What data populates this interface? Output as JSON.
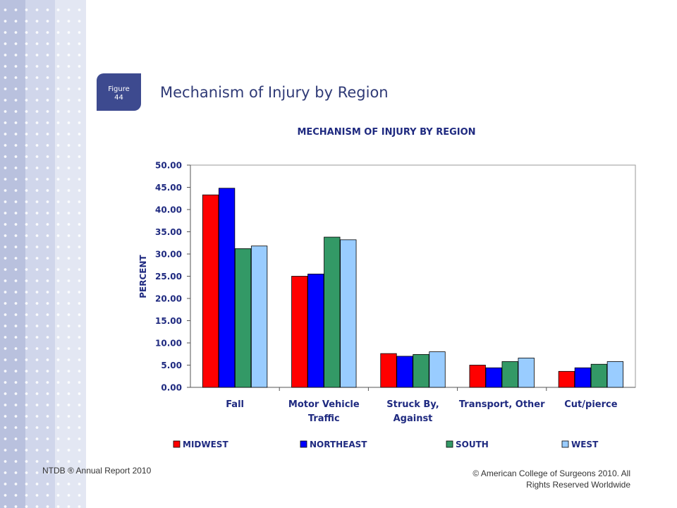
{
  "slide": {
    "figure_badge": [
      "Figure",
      "44"
    ],
    "title": "Mechanism of Injury by Region",
    "footer_left": "NTDB ® Annual Report 2010",
    "footer_right": [
      "© American College of Surgeons 2010.  All",
      "Rights Reserved Worldwide"
    ]
  },
  "colors": {
    "sidebar": "#eef0f8",
    "sidebar_bands": [
      "#b9c1de",
      "#d0d6eb",
      "#e3e7f3"
    ],
    "badge": "#3d4a8f",
    "title_text": "#2f3a76",
    "chart_text": "#1f2a80"
  },
  "chart_data": {
    "type": "bar",
    "title": "MECHANISM OF INJURY BY REGION",
    "xlabel": "",
    "ylabel": "PERCENT",
    "ylim": [
      0,
      50
    ],
    "yticks": [
      "0.00",
      "5.00",
      "10.00",
      "15.00",
      "20.00",
      "25.00",
      "30.00",
      "35.00",
      "40.00",
      "45.00",
      "50.00"
    ],
    "grid": false,
    "legend_position": "bottom",
    "categories": [
      [
        "Fall"
      ],
      [
        "Motor Vehicle",
        "Traffic"
      ],
      [
        "Struck By,",
        "Against"
      ],
      [
        "Transport, Other"
      ],
      [
        "Cut/pierce"
      ]
    ],
    "series": [
      {
        "name": "MIDWEST",
        "color": "#ff0000",
        "values": [
          43.3,
          25.0,
          7.6,
          5.0,
          3.6
        ]
      },
      {
        "name": "NORTHEAST",
        "color": "#0000ff",
        "values": [
          44.8,
          25.5,
          7.0,
          4.4,
          4.4
        ]
      },
      {
        "name": "SOUTH",
        "color": "#339966",
        "values": [
          31.2,
          33.8,
          7.4,
          5.8,
          5.2
        ]
      },
      {
        "name": "WEST",
        "color": "#99ccff",
        "values": [
          31.8,
          33.2,
          8.0,
          6.6,
          5.8
        ]
      }
    ]
  }
}
